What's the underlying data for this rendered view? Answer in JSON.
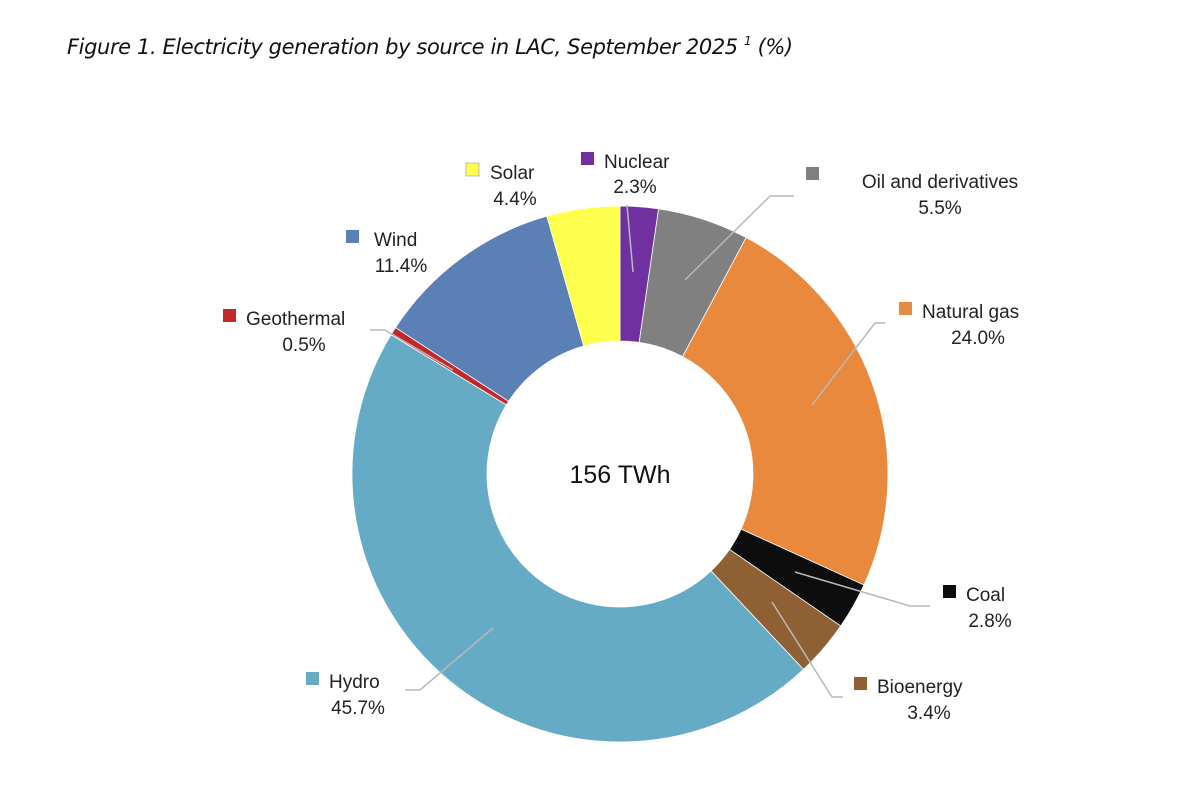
{
  "figure": {
    "title": "Figure 1. Electricity generation by source in LAC, September 2025",
    "footnote_marker": "1",
    "unit_suffix": "(%)"
  },
  "chart_data": {
    "type": "pie",
    "variant": "donut",
    "title": "Electricity generation by source in LAC, September 2025 (%)",
    "center_label": "156 TWh",
    "start_angle": "12 o'clock",
    "direction": "clockwise",
    "legend": "inline labels with leader lines",
    "slices": [
      {
        "name": "Nuclear",
        "value": 2.3,
        "label": "2.3%",
        "color": "#7030a0"
      },
      {
        "name": "Oil and derivatives",
        "value": 5.5,
        "label": "5.5%",
        "color": "#808080"
      },
      {
        "name": "Natural gas",
        "value": 24.0,
        "label": "24.0%",
        "color": "#e8893d"
      },
      {
        "name": "Coal",
        "value": 2.8,
        "label": "2.8%",
        "color": "#0d0d0d"
      },
      {
        "name": "Bioenergy",
        "value": 3.4,
        "label": "3.4%",
        "color": "#8e6034"
      },
      {
        "name": "Hydro",
        "value": 45.7,
        "label": "45.7%",
        "color": "#66abc5"
      },
      {
        "name": "Geothermal",
        "value": 0.5,
        "label": "0.5%",
        "color": "#c0282a"
      },
      {
        "name": "Wind",
        "value": 11.4,
        "label": "11.4%",
        "color": "#5a80b5"
      },
      {
        "name": "Solar",
        "value": 4.4,
        "label": "4.4%",
        "color": "#ffff4d"
      }
    ]
  }
}
